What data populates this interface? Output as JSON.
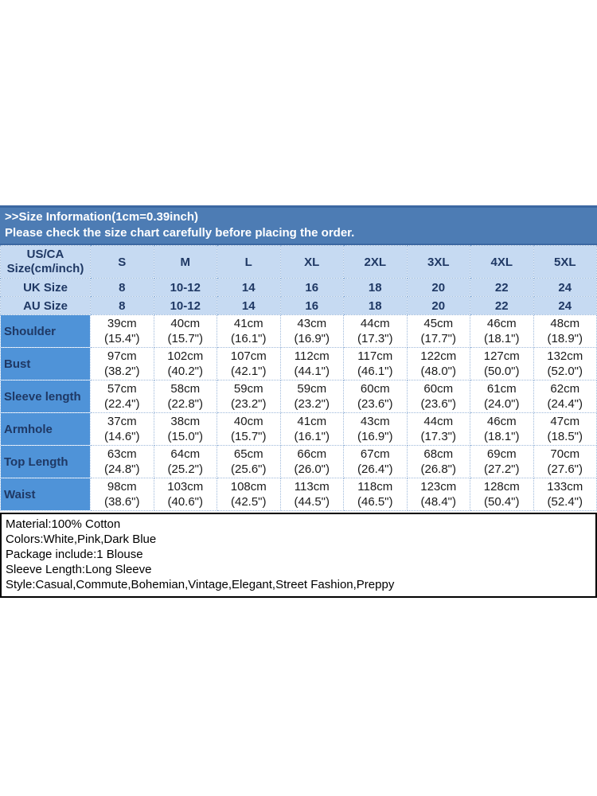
{
  "banner": {
    "title": ">>Size Information(1cm=0.39inch)",
    "subtitle": "Please check the size chart carefully before placing the order."
  },
  "table": {
    "corner_label": "US/CA Size(cm/inch)",
    "size_headers": [
      "S",
      "M",
      "L",
      "XL",
      "2XL",
      "3XL",
      "4XL",
      "5XL"
    ],
    "uk_label": "UK Size",
    "uk_values": [
      "8",
      "10-12",
      "14",
      "16",
      "18",
      "20",
      "22",
      "24"
    ],
    "au_label": "AU Size",
    "au_values": [
      "8",
      "10-12",
      "14",
      "16",
      "18",
      "20",
      "22",
      "24"
    ],
    "rows": [
      {
        "label": "Shoulder",
        "cm": [
          "39cm",
          "40cm",
          "41cm",
          "43cm",
          "44cm",
          "45cm",
          "46cm",
          "48cm"
        ],
        "inch": [
          "(15.4\")",
          "(15.7\")",
          "(16.1\")",
          "(16.9\")",
          "(17.3\")",
          "(17.7\")",
          "(18.1\")",
          "(18.9\")"
        ]
      },
      {
        "label": "Bust",
        "cm": [
          "97cm",
          "102cm",
          "107cm",
          "112cm",
          "117cm",
          "122cm",
          "127cm",
          "132cm"
        ],
        "inch": [
          "(38.2\")",
          "(40.2\")",
          "(42.1\")",
          "(44.1\")",
          "(46.1\")",
          "(48.0\")",
          "(50.0\")",
          "(52.0\")"
        ]
      },
      {
        "label": "Sleeve length",
        "cm": [
          "57cm",
          "58cm",
          "59cm",
          "59cm",
          "60cm",
          "60cm",
          "61cm",
          "62cm"
        ],
        "inch": [
          "(22.4\")",
          "(22.8\")",
          "(23.2\")",
          "(23.2\")",
          "(23.6\")",
          "(23.6\")",
          "(24.0\")",
          "(24.4\")"
        ]
      },
      {
        "label": "Armhole",
        "cm": [
          "37cm",
          "38cm",
          "40cm",
          "41cm",
          "43cm",
          "44cm",
          "46cm",
          "47cm"
        ],
        "inch": [
          "(14.6\")",
          "(15.0\")",
          "(15.7\")",
          "(16.1\")",
          "(16.9\")",
          "(17.3\")",
          "(18.1\")",
          "(18.5\")"
        ]
      },
      {
        "label": "Top Length",
        "cm": [
          "63cm",
          "64cm",
          "65cm",
          "66cm",
          "67cm",
          "68cm",
          "69cm",
          "70cm"
        ],
        "inch": [
          "(24.8\")",
          "(25.2\")",
          "(25.6\")",
          "(26.0\")",
          "(26.4\")",
          "(26.8\")",
          "(27.2\")",
          "(27.6\")"
        ]
      },
      {
        "label": "Waist",
        "cm": [
          "98cm",
          "103cm",
          "108cm",
          "113cm",
          "118cm",
          "123cm",
          "128cm",
          "133cm"
        ],
        "inch": [
          "(38.6\")",
          "(40.6\")",
          "(42.5\")",
          "(44.5\")",
          "(46.5\")",
          "(48.4\")",
          "(50.4\")",
          "(52.4\")"
        ]
      }
    ]
  },
  "footer": {
    "lines": [
      "Material:100% Cotton",
      "Colors:White,Pink,Dark Blue",
      "Package include:1 Blouse",
      "Sleeve Length:Long Sleeve",
      "Style:Casual,Commute,Bohemian,Vintage,Elegant,Street Fashion,Preppy"
    ]
  },
  "colors": {
    "banner_bg": "#4d7cb4",
    "banner_edge": "#3c68a2",
    "header_row_bg": "#c6daf2",
    "label_column_bg": "#4f93d8",
    "header_text": "#1f3864",
    "data_text": "#1a1a1a",
    "dotted_border": "#9db8da"
  }
}
